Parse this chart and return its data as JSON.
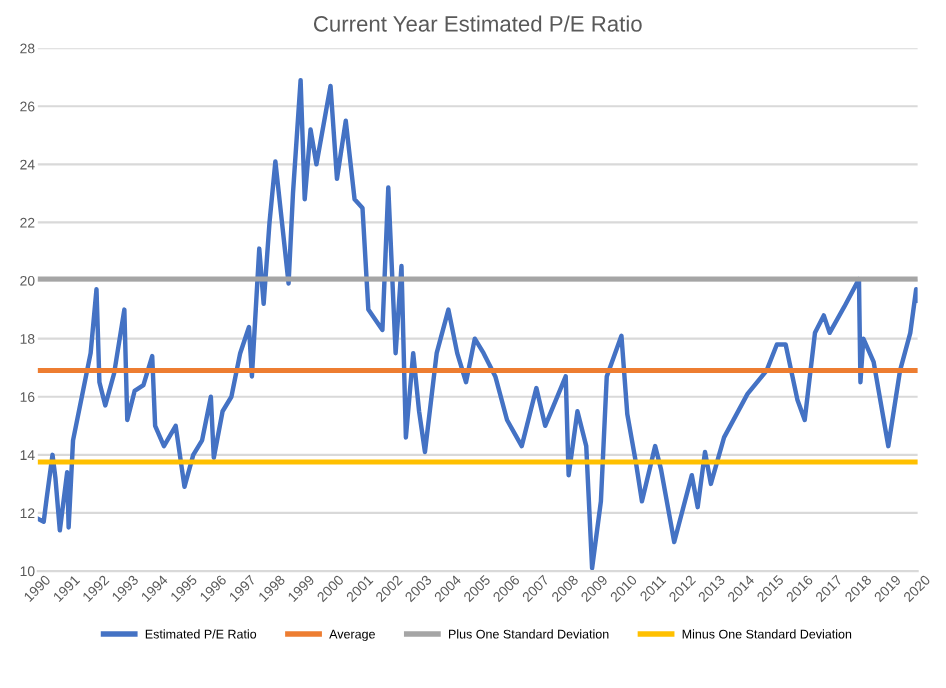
{
  "chart_data": {
    "type": "line",
    "title": "Current Year Estimated P/E Ratio",
    "xlim": [
      1990,
      2020
    ],
    "xticks": [
      1990,
      1991,
      1992,
      1993,
      1994,
      1995,
      1996,
      1997,
      1998,
      1999,
      2000,
      2001,
      2002,
      2003,
      2004,
      2005,
      2006,
      2007,
      2008,
      2009,
      2010,
      2011,
      2012,
      2013,
      2014,
      2015,
      2016,
      2017,
      2018,
      2019,
      2020
    ],
    "ylim": [
      10,
      28
    ],
    "yticks": [
      10,
      12,
      14,
      16,
      18,
      20,
      22,
      24,
      26,
      28
    ],
    "grid": "y",
    "legend": "bottom",
    "series": [
      {
        "name": "Estimated P/E Ratio",
        "color": "#4472c4",
        "x": [
          1990.0,
          1990.2,
          1990.3,
          1990.5,
          1990.6,
          1990.75,
          1991.0,
          1991.05,
          1991.2,
          1991.5,
          1991.8,
          1992.0,
          1992.1,
          1992.3,
          1992.6,
          1992.95,
          1993.05,
          1993.3,
          1993.6,
          1993.9,
          1994.0,
          1994.3,
          1994.7,
          1995.0,
          1995.3,
          1995.6,
          1995.9,
          1996.0,
          1996.3,
          1996.6,
          1996.9,
          1997.2,
          1997.3,
          1997.55,
          1997.7,
          1997.9,
          1998.1,
          1998.55,
          1998.7,
          1998.96,
          1999.1,
          1999.3,
          1999.5,
          1999.98,
          2000.2,
          2000.5,
          2000.8,
          2001.07,
          2001.27,
          2001.75,
          2001.95,
          2002.2,
          2002.4,
          2002.55,
          2002.8,
          2003.0,
          2003.2,
          2003.6,
          2004.0,
          2004.3,
          2004.6,
          2004.9,
          2005.2,
          2005.6,
          2006.0,
          2006.5,
          2007.0,
          2007.3,
          2008.0,
          2008.1,
          2008.4,
          2008.7,
          2008.9,
          2009.2,
          2009.4,
          2009.9,
          2010.1,
          2010.4,
          2010.6,
          2011.05,
          2011.25,
          2011.7,
          2012.3,
          2012.5,
          2012.75,
          2012.95,
          2013.4,
          2014.2,
          2014.85,
          2015.2,
          2015.5,
          2015.9,
          2016.15,
          2016.5,
          2016.8,
          2017.0,
          2017.5,
          2018.0,
          2018.05,
          2018.15,
          2018.5,
          2019.0,
          2019.4,
          2019.75,
          2019.95,
          2020.0
        ],
        "values": [
          11.8,
          11.7,
          12.5,
          14.0,
          13.2,
          11.4,
          13.4,
          11.5,
          14.5,
          16.0,
          17.5,
          19.7,
          16.5,
          15.7,
          16.8,
          19.0,
          15.2,
          16.2,
          16.4,
          17.4,
          15.0,
          14.3,
          15.0,
          12.9,
          14.0,
          14.5,
          16.0,
          13.9,
          15.5,
          16.0,
          17.5,
          18.4,
          16.7,
          21.1,
          19.2,
          22.0,
          24.1,
          19.9,
          23.0,
          26.9,
          22.8,
          25.2,
          24.0,
          26.7,
          23.5,
          25.5,
          22.8,
          22.5,
          19.0,
          18.3,
          23.2,
          17.5,
          20.5,
          14.6,
          17.5,
          15.5,
          14.1,
          17.5,
          19.0,
          17.5,
          16.5,
          18.0,
          17.5,
          16.7,
          15.2,
          14.3,
          16.3,
          15.0,
          16.7,
          13.3,
          15.5,
          14.3,
          10.1,
          12.4,
          16.7,
          18.1,
          15.4,
          13.7,
          12.4,
          14.3,
          13.5,
          11.0,
          13.3,
          12.2,
          14.1,
          13.0,
          14.6,
          16.1,
          16.9,
          17.8,
          17.8,
          15.9,
          15.2,
          18.2,
          18.8,
          18.2,
          19.1,
          20.05,
          16.5,
          18.0,
          17.2,
          14.3,
          16.9,
          18.2,
          19.7,
          19.3
        ]
      },
      {
        "name": "Average",
        "color": "#ed7d31",
        "x": [
          1990,
          2020
        ],
        "values": [
          16.9,
          16.9
        ]
      },
      {
        "name": "Plus One Standard Deviation",
        "color": "#a5a5a5",
        "x": [
          1990,
          2020
        ],
        "values": [
          20.05,
          20.05
        ]
      },
      {
        "name": "Minus One Standard Deviation",
        "color": "#ffc000",
        "x": [
          1990,
          2020
        ],
        "values": [
          13.75,
          13.75
        ]
      }
    ]
  }
}
